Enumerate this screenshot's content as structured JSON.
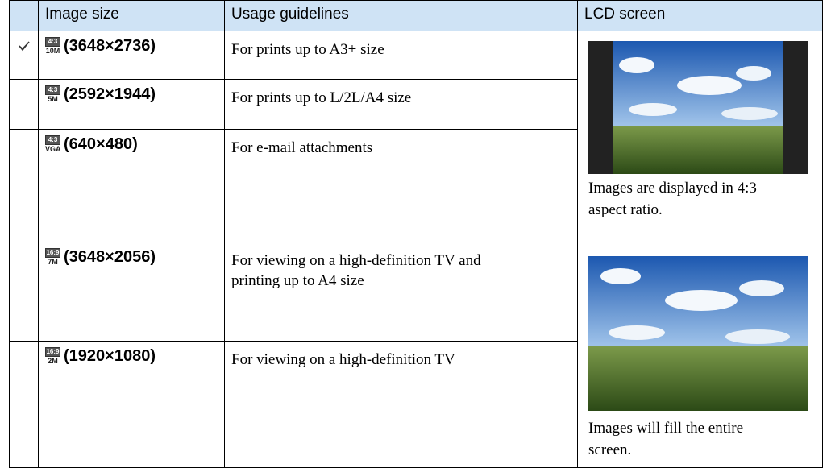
{
  "header": {
    "image_size": "Image size",
    "usage": "Usage guidelines",
    "lcd": "LCD screen"
  },
  "rows": [
    {
      "aspect": "4:3",
      "size": "10M",
      "resolution": "(3648×2736)",
      "usage": "For prints up to A3+ size"
    },
    {
      "aspect": "4:3",
      "size": "5M",
      "resolution": "(2592×1944)",
      "usage": "For prints up to L/2L/A4 size"
    },
    {
      "aspect": "4:3",
      "size": "VGA",
      "resolution": "(640×480)",
      "usage": "For e-mail attachments"
    },
    {
      "aspect": "16:9",
      "size": "7M",
      "resolution": "(3648×2056)",
      "usage": "For viewing on a high-definition TV and printing up to A4 size"
    },
    {
      "aspect": "16:9",
      "size": "2M",
      "resolution": "(1920×1080)",
      "usage": "For viewing on a high-definition TV"
    }
  ],
  "lcd_groups": [
    {
      "caption": "Images are displayed in 4:3 aspect ratio."
    },
    {
      "caption": "Images will fill the entire screen."
    }
  ]
}
